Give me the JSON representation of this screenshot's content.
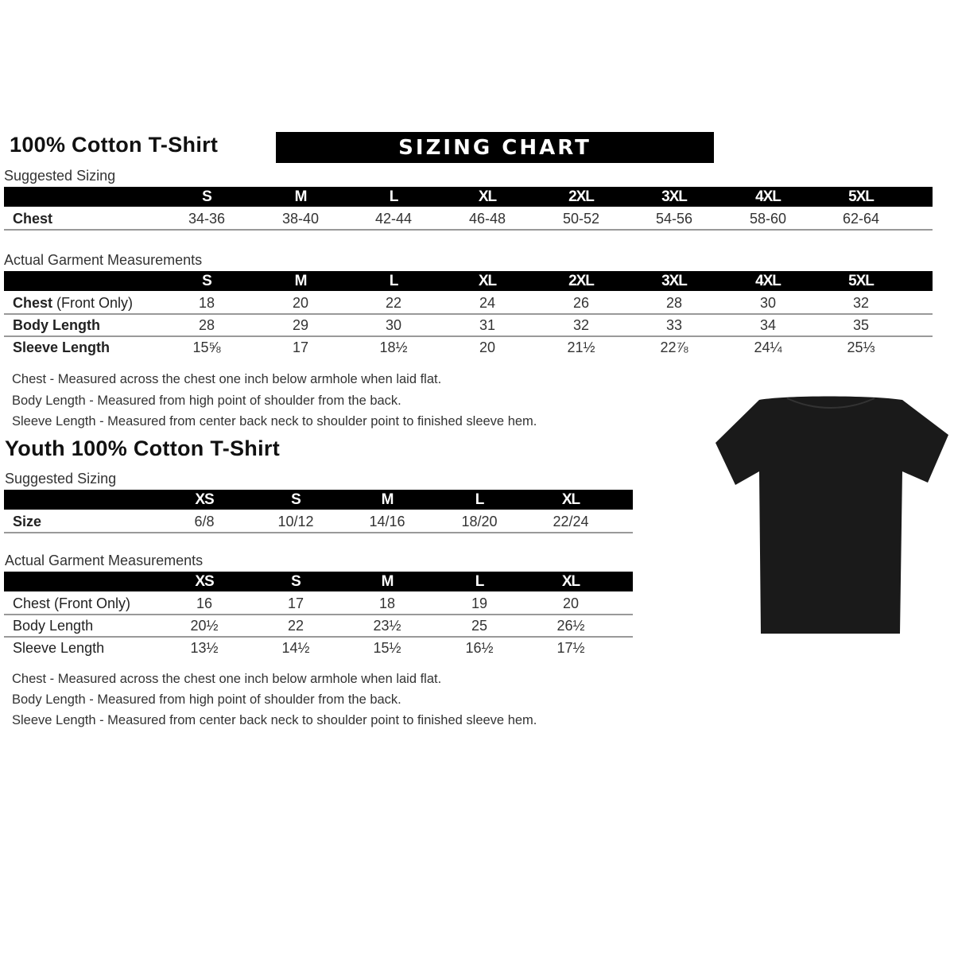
{
  "adult": {
    "title": "100% Cotton T-Shirt",
    "banner": "SIZING CHART",
    "suggested_label": "Suggested Sizing",
    "sizes": [
      "S",
      "M",
      "L",
      "XL",
      "2XL",
      "3XL",
      "4XL",
      "5XL"
    ],
    "suggested_rows": [
      {
        "label_bold": "Chest",
        "label_rest": "",
        "values": [
          "34-36",
          "38-40",
          "42-44",
          "46-48",
          "50-52",
          "54-56",
          "58-60",
          "62-64"
        ]
      }
    ],
    "actual_label": "Actual Garment Measurements",
    "actual_rows": [
      {
        "label_bold": "Chest",
        "label_rest": " (Front Only)",
        "values": [
          "18",
          "20",
          "22",
          "24",
          "26",
          "28",
          "30",
          "32"
        ]
      },
      {
        "label_bold": "Body Length",
        "label_rest": "",
        "values": [
          "28",
          "29",
          "30",
          "31",
          "32",
          "33",
          "34",
          "35"
        ]
      },
      {
        "label_bold": "Sleeve Length",
        "label_rest": "",
        "values": [
          "15⅝",
          "17",
          "18½",
          "20",
          "21½",
          "22⅞",
          "24¼",
          "25⅓"
        ]
      }
    ],
    "notes": [
      "Chest - Measured across the chest one inch below armhole when laid flat.",
      "Body Length - Measured from high point of shoulder from the back.",
      "Sleeve Length - Measured from center back neck to shoulder point to finished sleeve hem."
    ]
  },
  "youth": {
    "title": "Youth 100% Cotton T-Shirt",
    "suggested_label": "Suggested Sizing",
    "sizes": [
      "XS",
      "S",
      "M",
      "L",
      "XL"
    ],
    "suggested_rows": [
      {
        "label_bold": "Size",
        "label_rest": "",
        "values": [
          "6/8",
          "10/12",
          "14/16",
          "18/20",
          "22/24"
        ]
      }
    ],
    "actual_label": "Actual Garment Measurements",
    "actual_rows": [
      {
        "label_bold": "",
        "label_rest": "Chest (Front Only)",
        "values": [
          "16",
          "17",
          "18",
          "19",
          "20"
        ]
      },
      {
        "label_bold": "",
        "label_rest": "Body Length",
        "values": [
          "20½",
          "22",
          "23½",
          "25",
          "26½"
        ]
      },
      {
        "label_bold": "",
        "label_rest": "Sleeve Length",
        "values": [
          "13½",
          "14½",
          "15½",
          "16½",
          "17½"
        ]
      }
    ],
    "notes": [
      "Chest - Measured across the chest one inch below armhole when laid flat.",
      "Body Length - Measured from high point of shoulder from the back.",
      "Sleeve Length - Measured from center back neck to shoulder point to finished sleeve hem."
    ]
  },
  "tshirt_color": "#1a1a1a"
}
